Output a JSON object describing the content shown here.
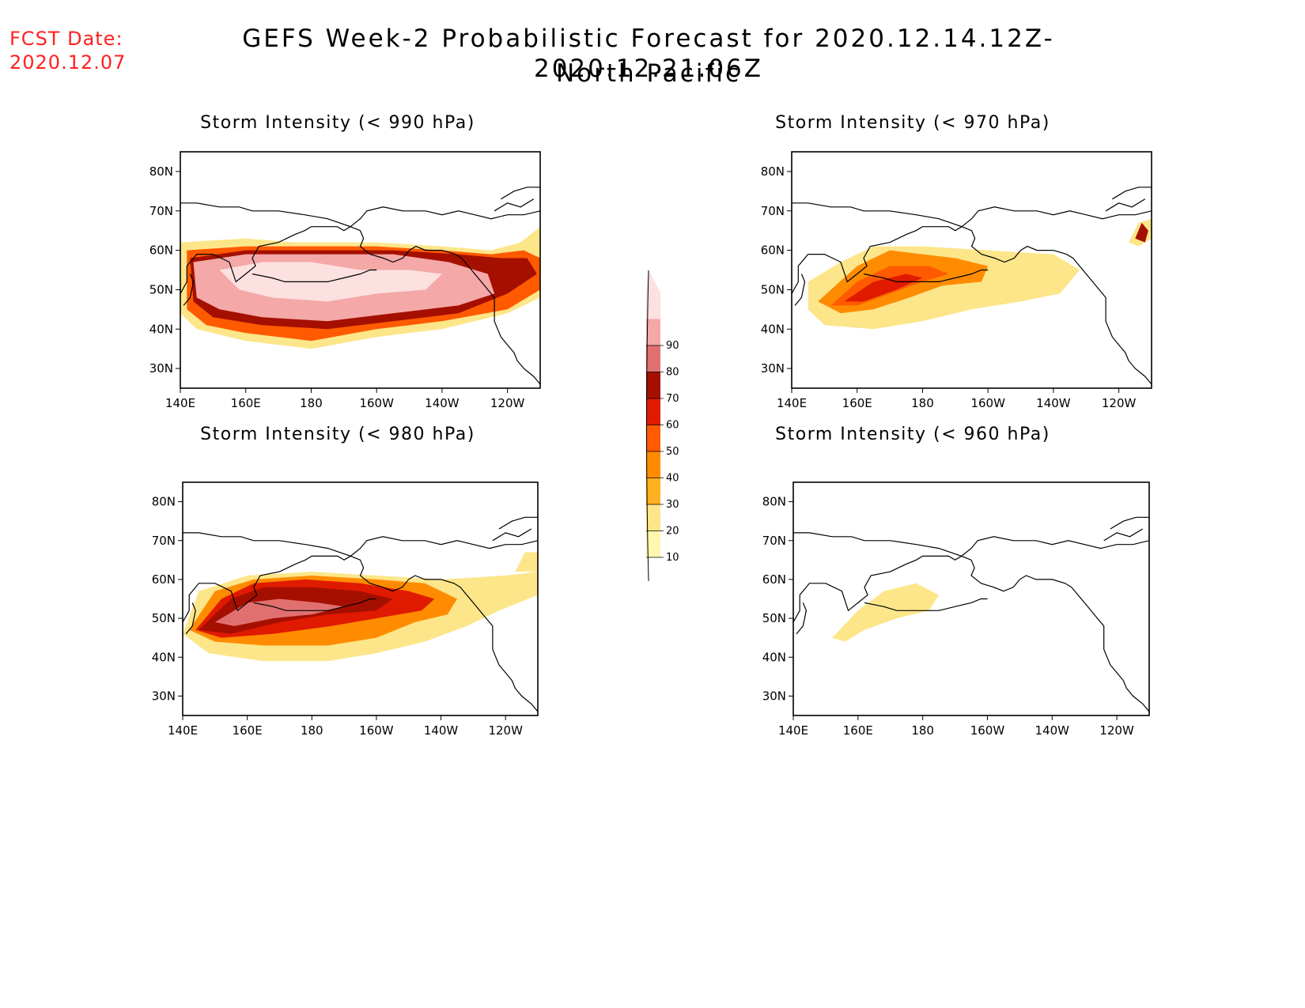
{
  "header": {
    "fcst_label": "FCST Date:",
    "fcst_date": "2020.12.07",
    "title": "GEFS Week-2 Probabilistic Forecast for 2020.12.14.12Z-2020.12.21.06Z",
    "subtitle": "North Pacific"
  },
  "panels": [
    {
      "id": "p990",
      "title": "Storm Intensity (< 990 hPa)"
    },
    {
      "id": "p970",
      "title": "Storm Intensity (< 970 hPa)"
    },
    {
      "id": "p980",
      "title": "Storm Intensity (< 980 hPa)"
    },
    {
      "id": "p960",
      "title": "Storm Intensity (< 960 hPa)"
    }
  ],
  "axes": {
    "lat_labels": [
      "80N",
      "70N",
      "60N",
      "50N",
      "40N",
      "30N"
    ],
    "lon_labels": [
      "140E",
      "160E",
      "180",
      "160W",
      "140W",
      "120W"
    ]
  },
  "colorbar": {
    "levels": [
      "10",
      "20",
      "30",
      "40",
      "50",
      "60",
      "70",
      "80",
      "90"
    ],
    "colors": [
      "#fff7b0",
      "#fde68a",
      "#ffb020",
      "#ff8c00",
      "#ff5a00",
      "#e01a00",
      "#a50f00",
      "#e07070",
      "#f4a8a8",
      "#fde0e0"
    ]
  }
}
